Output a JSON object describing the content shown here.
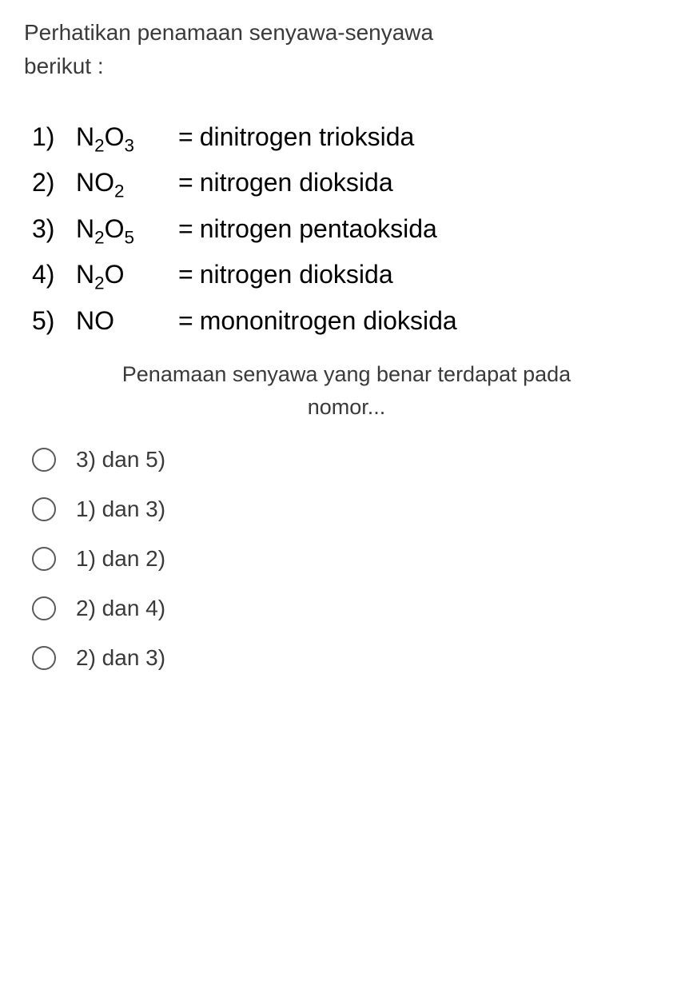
{
  "question": {
    "intro_line1": "Perhatikan penamaan senyawa-senyawa",
    "intro_line2": "berikut :",
    "footer_line1": "Penamaan senyawa yang benar terdapat pada",
    "footer_line2": "nomor..."
  },
  "compounds": [
    {
      "number": "1)",
      "formula_html": "N<sub>2</sub>O<sub>3</sub>",
      "equals": "=",
      "name": "dinitrogen trioksida"
    },
    {
      "number": "2)",
      "formula_html": "NO<sub>2</sub>",
      "equals": "=",
      "name": "nitrogen dioksida"
    },
    {
      "number": "3)",
      "formula_html": "N<sub>2</sub>O<sub>5</sub>",
      "equals": "=",
      "name": " nitrogen pentaoksida"
    },
    {
      "number": "4)",
      "formula_html": "N<sub>2</sub>O",
      "equals": "=",
      "name": "nitrogen dioksida"
    },
    {
      "number": "5)",
      "formula_html": "NO",
      "equals": "=",
      "name": "mononitrogen dioksida"
    }
  ],
  "options": [
    {
      "label": "3) dan 5)"
    },
    {
      "label": "1) dan 3)"
    },
    {
      "label": "1) dan 2)"
    },
    {
      "label": "2) dan 4)"
    },
    {
      "label": "2) dan 3)"
    }
  ],
  "colors": {
    "text_primary": "#000000",
    "text_secondary": "#3a3a3a",
    "radio_border": "#5a5a5a",
    "background": "#ffffff"
  },
  "typography": {
    "intro_fontsize": 28,
    "compound_fontsize": 32,
    "footer_fontsize": 27,
    "option_fontsize": 28
  }
}
